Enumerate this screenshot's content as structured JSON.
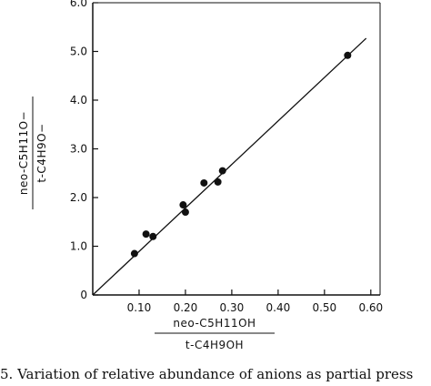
{
  "chart_data": {
    "type": "scatter",
    "xlabel_numerator": "neo-C5H11OH",
    "xlabel_denominator": "t-C4H9OH",
    "ylabel_numerator": "neo-C5H11O−",
    "ylabel_denominator": "t-C4H9O−",
    "xlim": [
      0,
      0.62
    ],
    "ylim": [
      0,
      6.0
    ],
    "x_ticks": [
      "0.10",
      "0.20",
      "0.30",
      "0.40",
      "0.50",
      "0.60"
    ],
    "x_tick_values": [
      0.1,
      0.2,
      0.3,
      0.4,
      0.5,
      0.6
    ],
    "y_ticks": [
      "0",
      "1.0",
      "2.0",
      "3.0",
      "4.0",
      "5.0",
      "6.0"
    ],
    "y_tick_values": [
      0,
      1.0,
      2.0,
      3.0,
      4.0,
      5.0,
      6.0
    ],
    "series": [
      {
        "points": [
          {
            "x": 0.09,
            "y": 0.85
          },
          {
            "x": 0.115,
            "y": 1.25
          },
          {
            "x": 0.13,
            "y": 1.2
          },
          {
            "x": 0.195,
            "y": 1.85
          },
          {
            "x": 0.2,
            "y": 1.7
          },
          {
            "x": 0.24,
            "y": 2.3
          },
          {
            "x": 0.27,
            "y": 2.32
          },
          {
            "x": 0.28,
            "y": 2.55
          },
          {
            "x": 0.55,
            "y": 4.92
          }
        ]
      }
    ],
    "fit_line": {
      "x": [
        0,
        0.59
      ],
      "y": [
        0,
        5.27
      ]
    },
    "grid": false
  },
  "caption": "5. Variation of relative abundance of anions as partial press"
}
